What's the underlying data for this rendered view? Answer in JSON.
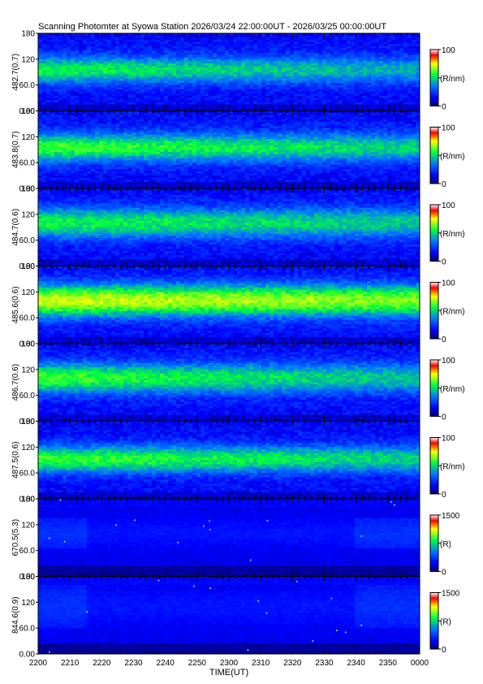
{
  "title": "Scanning Photomter at Syowa Station 2026/03/24 22:00:00UT - 2026/03/25 00:00:00UT",
  "colors": {
    "background": "#000080",
    "low": "#0000ff",
    "mid": "#00ff00",
    "high": "#ffff00",
    "max": "#ff0000",
    "top": "#ffffff"
  },
  "chart_data": {
    "type": "heatmap",
    "xlabel": "TIME(UT)",
    "xticks": [
      "2200",
      "2210",
      "2220",
      "2230",
      "2240",
      "2250",
      "2300",
      "2310",
      "2320",
      "2330",
      "2340",
      "2350",
      "0000"
    ],
    "xlim": [
      "22:00",
      "24:00"
    ],
    "ylim": [
      0,
      180
    ],
    "yticks": [
      "0.00",
      "60.0",
      "120",
      "180"
    ],
    "panels": [
      {
        "ylabel": "482.7(0.7)",
        "unit": "(R/nm)",
        "cmin": "0",
        "cmax": "100",
        "peak": 0.55,
        "center": 95,
        "width": 32,
        "trend": -0.25,
        "dark": false
      },
      {
        "ylabel": "483.8(0.7)",
        "unit": "(R/nm)",
        "cmin": "0",
        "cmax": "100",
        "peak": 0.6,
        "center": 95,
        "width": 34,
        "trend": -0.2,
        "dark": false
      },
      {
        "ylabel": "484.7(0.6)",
        "unit": "(R/nm)",
        "cmin": "0",
        "cmax": "100",
        "peak": 0.55,
        "center": 100,
        "width": 36,
        "trend": -0.15,
        "dark": false
      },
      {
        "ylabel": "485.6(0.6)",
        "unit": "(R/nm)",
        "cmin": "0",
        "cmax": "100",
        "peak": 0.72,
        "center": 100,
        "width": 38,
        "trend": -0.1,
        "dark": false
      },
      {
        "ylabel": "486.7(0.6)",
        "unit": "(R/nm)",
        "cmin": "0",
        "cmax": "100",
        "peak": 0.6,
        "center": 100,
        "width": 36,
        "trend": -0.25,
        "dark": false
      },
      {
        "ylabel": "487.5(0.6)",
        "unit": "(R/nm)",
        "cmin": "0",
        "cmax": "100",
        "peak": 0.6,
        "center": 92,
        "width": 32,
        "trend": -0.2,
        "dark": false
      },
      {
        "ylabel": "670.5(5.3)",
        "unit": "(R)",
        "cmin": "0",
        "cmax": "1500",
        "peak": 0.22,
        "center": 100,
        "width": 30,
        "trend": -0.05,
        "dark": true
      },
      {
        "ylabel": "844.6(0.9)",
        "unit": "(R)",
        "cmin": "0",
        "cmax": "1500",
        "peak": 0.18,
        "center": 110,
        "width": 40,
        "trend": 0,
        "dark": true
      }
    ]
  }
}
